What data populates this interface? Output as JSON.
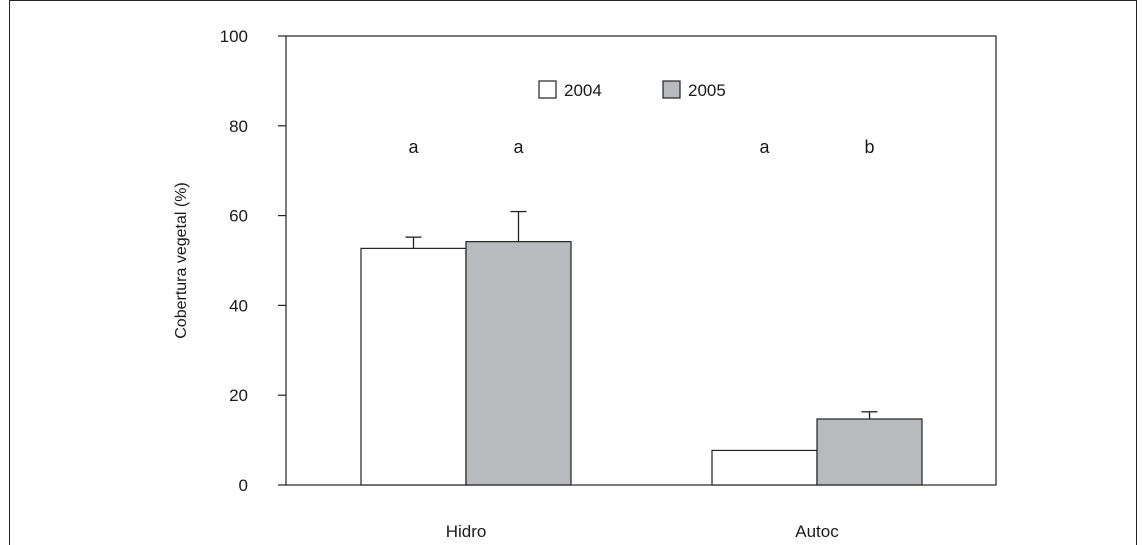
{
  "chart_data": {
    "type": "bar",
    "title": "",
    "xlabel": "",
    "ylabel": "Cobertura vegetal (%)",
    "ylim": [
      0,
      100
    ],
    "yticks": [
      0,
      20,
      40,
      60,
      80,
      100
    ],
    "categories": [
      "Hidro",
      "Autoc"
    ],
    "series": [
      {
        "name": "2004",
        "values": [
          52.7,
          7.7
        ],
        "errors": [
          2.5,
          0
        ],
        "letters": [
          "a",
          "a"
        ],
        "color": "#ffffff"
      },
      {
        "name": "2005",
        "values": [
          54.2,
          14.7
        ],
        "errors": [
          6.7,
          1.6
        ],
        "letters": [
          "a",
          "b"
        ],
        "color": "#b9babd"
      }
    ],
    "legend": "top-center",
    "grid": false
  }
}
